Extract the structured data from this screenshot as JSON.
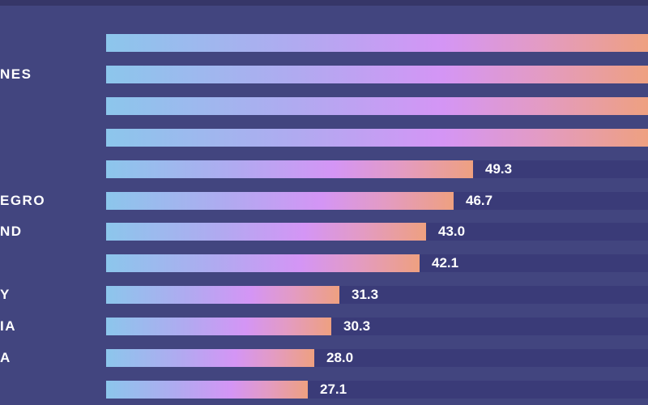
{
  "chart_data": {
    "type": "bar",
    "orientation": "horizontal",
    "categories": [
      "",
      "NES",
      "",
      "",
      "",
      "EGRO",
      "ND",
      "",
      "Y",
      "IA",
      "A",
      ""
    ],
    "values": [
      null,
      null,
      null,
      null,
      49.3,
      46.7,
      43.0,
      42.1,
      31.3,
      30.3,
      28.0,
      27.1
    ],
    "value_labels": [
      "",
      "",
      "",
      "",
      "49.3",
      "46.7",
      "43.0",
      "42.1",
      "31.3",
      "30.3",
      "28.0",
      "27.1"
    ],
    "note_values": "first four bars extend beyond the visible crop; values not visible",
    "colors": {
      "gradient_start": "#8cc6ec",
      "gradient_mid": "#d495f5",
      "gradient_end": "#eea080",
      "background": "#42457f"
    }
  }
}
